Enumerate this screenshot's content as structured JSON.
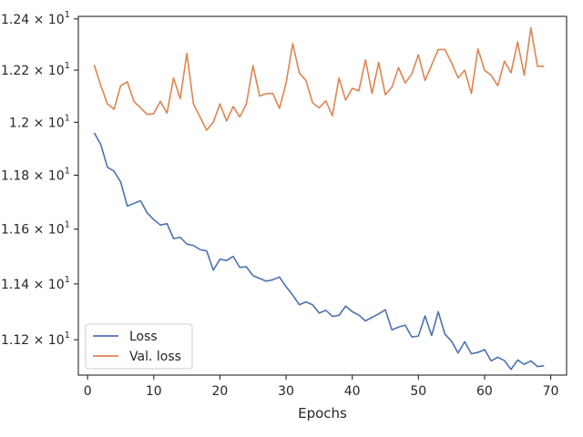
{
  "chart_data": {
    "type": "line",
    "xlabel": "Epochs",
    "ylabel": "",
    "title": "",
    "xlim": [
      -1.4,
      72.4
    ],
    "ylim": [
      11.075,
      12.41
    ],
    "y_scale": "log",
    "x_ticks": [
      0,
      10,
      20,
      30,
      40,
      50,
      60,
      70
    ],
    "x_tick_labels": [
      "0",
      "10",
      "20",
      "30",
      "40",
      "50",
      "60",
      "70"
    ],
    "y_ticks": [
      11.2,
      11.4,
      11.6,
      11.8,
      12.0,
      12.2,
      12.4
    ],
    "y_tick_labels": [
      {
        "mantissa": "1.12",
        "sep": "×",
        "base": "10",
        "exp": "1"
      },
      {
        "mantissa": "1.14",
        "sep": "×",
        "base": "10",
        "exp": "1"
      },
      {
        "mantissa": "1.16",
        "sep": "×",
        "base": "10",
        "exp": "1"
      },
      {
        "mantissa": "1.18",
        "sep": "×",
        "base": "10",
        "exp": "1"
      },
      {
        "mantissa": "1.2",
        "sep": "×",
        "base": "10",
        "exp": "1"
      },
      {
        "mantissa": "1.22",
        "sep": "×",
        "base": "10",
        "exp": "1"
      },
      {
        "mantissa": "1.24",
        "sep": "×",
        "base": "10",
        "exp": "1"
      }
    ],
    "grid": false,
    "legend_position": "lower-left",
    "series": [
      {
        "name": "Loss",
        "color": "#4c72b0",
        "x": [
          1,
          2,
          3,
          4,
          5,
          6,
          7,
          8,
          9,
          10,
          11,
          12,
          13,
          14,
          15,
          16,
          17,
          18,
          19,
          20,
          21,
          22,
          23,
          24,
          25,
          26,
          27,
          28,
          29,
          30,
          31,
          32,
          33,
          34,
          35,
          36,
          37,
          38,
          39,
          40,
          41,
          42,
          43,
          44,
          45,
          46,
          47,
          48,
          49,
          50,
          51,
          52,
          53,
          54,
          55,
          56,
          57,
          58,
          59,
          60,
          61,
          62,
          63,
          64,
          65,
          66,
          67,
          68,
          69
        ],
        "values": [
          11.96,
          11.915,
          11.83,
          11.815,
          11.775,
          11.685,
          11.695,
          11.705,
          11.66,
          11.635,
          11.615,
          11.62,
          11.565,
          11.57,
          11.545,
          11.54,
          11.525,
          11.52,
          11.45,
          11.49,
          11.485,
          11.5,
          11.46,
          11.462,
          11.43,
          11.42,
          11.41,
          11.415,
          11.425,
          11.39,
          11.36,
          11.325,
          11.335,
          11.325,
          11.295,
          11.305,
          11.283,
          11.287,
          11.32,
          11.3,
          11.288,
          11.267,
          11.28,
          11.292,
          11.307,
          11.235,
          11.245,
          11.252,
          11.21,
          11.213,
          11.285,
          11.215,
          11.3,
          11.22,
          11.195,
          11.153,
          11.193,
          11.15,
          11.155,
          11.165,
          11.125,
          11.138,
          11.126,
          11.095,
          11.128,
          11.113,
          11.125,
          11.105,
          11.108
        ]
      },
      {
        "name": "Val. loss",
        "color": "#dd8452",
        "x": [
          1,
          2,
          3,
          4,
          5,
          6,
          7,
          8,
          9,
          10,
          11,
          12,
          13,
          14,
          15,
          16,
          17,
          18,
          19,
          20,
          21,
          22,
          23,
          24,
          25,
          26,
          27,
          28,
          29,
          30,
          31,
          32,
          33,
          34,
          35,
          36,
          37,
          38,
          39,
          40,
          41,
          42,
          43,
          44,
          45,
          46,
          47,
          48,
          49,
          50,
          51,
          52,
          53,
          54,
          55,
          56,
          57,
          58,
          59,
          60,
          61,
          62,
          63,
          64,
          65,
          66,
          67,
          68,
          69
        ],
        "values": [
          12.22,
          12.14,
          12.07,
          12.05,
          12.14,
          12.155,
          12.08,
          12.055,
          12.03,
          12.033,
          12.08,
          12.035,
          12.17,
          12.09,
          12.265,
          12.07,
          12.02,
          11.97,
          12.0,
          12.07,
          12.005,
          12.06,
          12.02,
          12.07,
          12.218,
          12.1,
          12.11,
          12.11,
          12.053,
          12.15,
          12.303,
          12.19,
          12.16,
          12.075,
          12.055,
          12.082,
          12.025,
          12.17,
          12.085,
          12.13,
          12.12,
          12.24,
          12.11,
          12.23,
          12.105,
          12.135,
          12.21,
          12.15,
          12.185,
          12.26,
          12.16,
          12.22,
          12.28,
          12.28,
          12.23,
          12.17,
          12.2,
          12.11,
          12.283,
          12.2,
          12.18,
          12.14,
          12.235,
          12.19,
          12.31,
          12.18,
          12.365,
          12.215,
          12.215
        ]
      }
    ]
  }
}
